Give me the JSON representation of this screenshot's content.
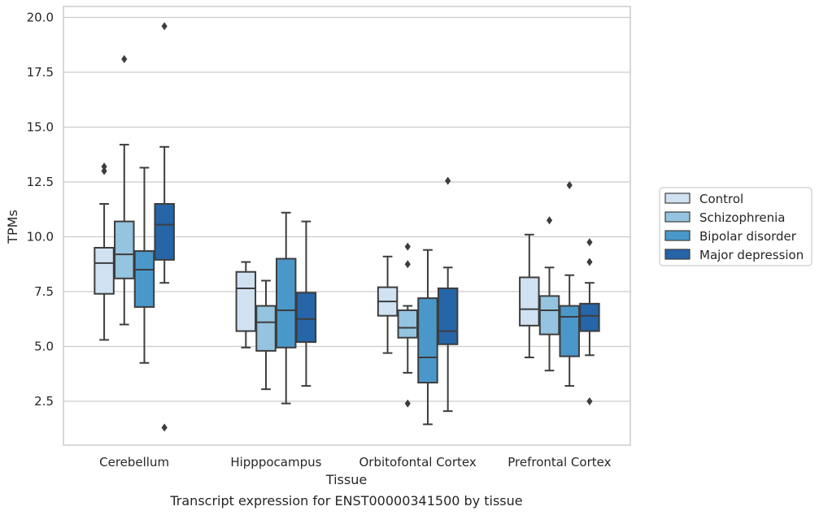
{
  "chart_data": {
    "type": "boxplot",
    "xlabel": "Tissue",
    "ylabel": "TPMs",
    "caption": "Transcript expression for ENST00000341500 by tissue",
    "ylim": [
      0.5,
      20.5
    ],
    "yticks": [
      2.5,
      5.0,
      7.5,
      10.0,
      12.5,
      15.0,
      17.5,
      20.0
    ],
    "ytick_labels": [
      "2.5",
      "5.0",
      "7.5",
      "10.0",
      "12.5",
      "15.0",
      "17.5",
      "20.0"
    ],
    "grid": "horizontal",
    "legend_position": "right",
    "categories": [
      "Cerebellum",
      "Hipppocampus",
      "Orbitofontal Cortex",
      "Prefrontal Cortex"
    ],
    "series": [
      {
        "name": "Control",
        "color": "#d0e1f2",
        "boxes": [
          {
            "whislo": 5.3,
            "q1": 7.4,
            "med": 8.8,
            "q3": 9.5,
            "whishi": 11.5,
            "fliers": [
              13.0,
              13.2
            ]
          },
          {
            "whislo": 4.95,
            "q1": 5.7,
            "med": 7.65,
            "q3": 8.4,
            "whishi": 8.85,
            "fliers": []
          },
          {
            "whislo": 4.7,
            "q1": 6.4,
            "med": 7.05,
            "q3": 7.7,
            "whishi": 9.1,
            "fliers": []
          },
          {
            "whislo": 4.5,
            "q1": 5.95,
            "med": 6.7,
            "q3": 8.15,
            "whishi": 10.1,
            "fliers": []
          }
        ]
      },
      {
        "name": "Schizophrenia",
        "color": "#94c4df",
        "boxes": [
          {
            "whislo": 6.0,
            "q1": 8.1,
            "med": 9.2,
            "q3": 10.7,
            "whishi": 14.2,
            "fliers": [
              18.1
            ]
          },
          {
            "whislo": 3.05,
            "q1": 4.8,
            "med": 6.1,
            "q3": 6.85,
            "whishi": 8.0,
            "fliers": []
          },
          {
            "whislo": 3.8,
            "q1": 5.4,
            "med": 5.85,
            "q3": 6.65,
            "whishi": 6.85,
            "fliers": [
              8.75,
              9.55,
              2.4
            ]
          },
          {
            "whislo": 3.9,
            "q1": 5.55,
            "med": 6.65,
            "q3": 7.3,
            "whishi": 8.6,
            "fliers": [
              10.75
            ]
          }
        ]
      },
      {
        "name": "Bipolar disorder",
        "color": "#4a98c9",
        "boxes": [
          {
            "whislo": 4.25,
            "q1": 6.8,
            "med": 8.5,
            "q3": 9.35,
            "whishi": 13.15,
            "fliers": []
          },
          {
            "whislo": 2.4,
            "q1": 4.95,
            "med": 6.65,
            "q3": 9.0,
            "whishi": 11.1,
            "fliers": []
          },
          {
            "whislo": 1.45,
            "q1": 3.35,
            "med": 4.5,
            "q3": 7.2,
            "whishi": 9.4,
            "fliers": []
          },
          {
            "whislo": 3.2,
            "q1": 4.55,
            "med": 6.35,
            "q3": 6.85,
            "whishi": 8.25,
            "fliers": [
              12.35
            ]
          }
        ]
      },
      {
        "name": "Major depression",
        "color": "#2565a8",
        "boxes": [
          {
            "whislo": 7.9,
            "q1": 8.95,
            "med": 10.55,
            "q3": 11.5,
            "whishi": 14.1,
            "fliers": [
              19.6,
              1.3
            ]
          },
          {
            "whislo": 3.2,
            "q1": 5.2,
            "med": 6.25,
            "q3": 7.45,
            "whishi": 10.7,
            "fliers": []
          },
          {
            "whislo": 2.05,
            "q1": 5.1,
            "med": 5.7,
            "q3": 7.65,
            "whishi": 8.6,
            "fliers": [
              12.55
            ]
          },
          {
            "whislo": 4.6,
            "q1": 5.7,
            "med": 6.4,
            "q3": 6.95,
            "whishi": 7.9,
            "fliers": [
              9.75,
              8.85,
              2.5
            ]
          }
        ]
      }
    ]
  }
}
